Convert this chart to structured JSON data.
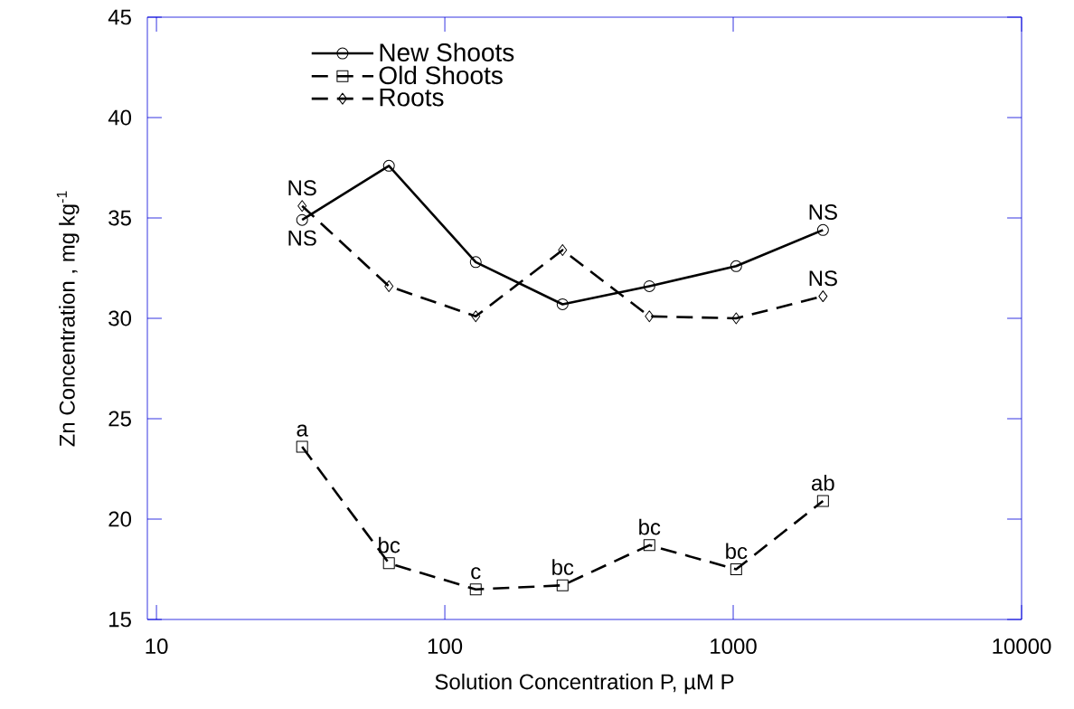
{
  "chart_data": {
    "type": "line",
    "xlabel": "Solution Concentration P, µM P",
    "ylabel": "Zn Concentration , mg kg$^{-1}$",
    "x": [
      32,
      64,
      128,
      256,
      512,
      1024,
      2048
    ],
    "series": [
      {
        "name": "New Shoots",
        "color": "#000000",
        "marker": "circle",
        "line_style": "solid",
        "values": [
          34.9,
          37.6,
          32.8,
          30.7,
          31.6,
          32.6,
          34.4
        ]
      },
      {
        "name": "Old Shoots",
        "color": "#000000",
        "marker": "square",
        "line_style": "dashed",
        "values": [
          23.6,
          17.8,
          16.5,
          16.7,
          18.7,
          17.5,
          20.9
        ]
      },
      {
        "name": "Roots",
        "color": "#000000",
        "marker": "diamond",
        "line_style": "dashed",
        "values": [
          35.6,
          31.6,
          30.1,
          33.4,
          30.1,
          30.0,
          31.1
        ]
      }
    ],
    "log": "x",
    "xlim": [
      9.3,
      10000
    ],
    "xticks": [
      10,
      100,
      1000,
      10000
    ],
    "ylim": [
      15,
      45
    ],
    "yticks": [
      15,
      20,
      25,
      30,
      35,
      40,
      45
    ],
    "legend": "top left",
    "tick_labels": "xy",
    "annotations": [
      {
        "text": "NS",
        "x": 32,
        "y": 34.9
      },
      {
        "text": "NS",
        "x": 32,
        "y": 35.6
      },
      {
        "text": "NS",
        "x": 2048,
        "y": 34.4
      },
      {
        "text": "NS",
        "x": 2048,
        "y": 31.1
      },
      {
        "text": "a",
        "x": 32,
        "y": 23.6
      },
      {
        "text": "bc",
        "x": 64,
        "y": 17.8
      },
      {
        "text": "c",
        "x": 128,
        "y": 16.5
      },
      {
        "text": "bc",
        "x": 256,
        "y": 16.7
      },
      {
        "text": "bc",
        "x": 512,
        "y": 18.7
      },
      {
        "text": "bc",
        "x": 1024,
        "y": 17.5
      },
      {
        "text": "ab",
        "x": 2048,
        "y": 20.9
      }
    ]
  }
}
